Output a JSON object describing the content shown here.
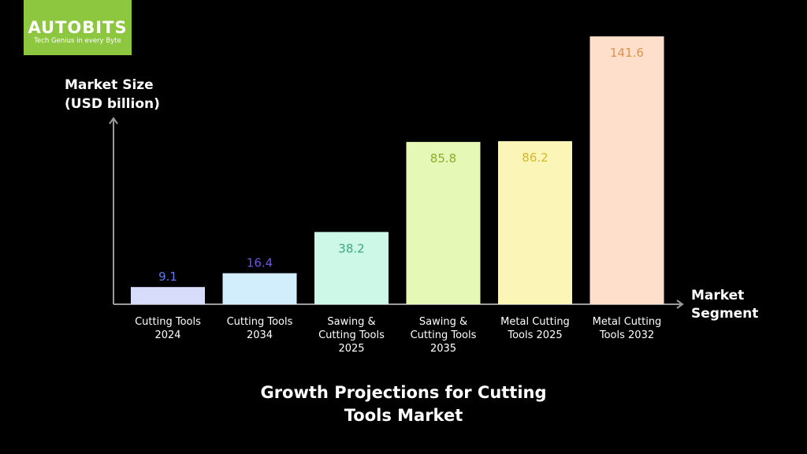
{
  "logo": {
    "name": "AUTOBITS",
    "tagline": "Tech Genius in every Byte",
    "color": "#8dc63f"
  },
  "chart_data": {
    "type": "bar",
    "title": "Growth Projections for Cutting Tools Market",
    "ylabel": [
      "Market Size",
      "(USD billion)"
    ],
    "xlabel": [
      "Market",
      "Segment"
    ],
    "ylim": [
      0,
      150
    ],
    "grid": false,
    "categories": [
      [
        "Cutting Tools",
        "2024"
      ],
      [
        "Cutting Tools",
        "2034"
      ],
      [
        "Sawing &",
        "Cutting Tools",
        "2025"
      ],
      [
        "Sawing &",
        "Cutting Tools",
        "2035"
      ],
      [
        "Metal Cutting",
        "Tools 2025"
      ],
      [
        "Metal Cutting",
        "Tools 2032"
      ]
    ],
    "values": [
      9.1,
      16.4,
      38.2,
      85.8,
      86.2,
      141.6
    ],
    "value_labels": [
      "9.1",
      "16.4",
      "38.2",
      "85.8",
      "86.2",
      "141.6"
    ],
    "bar_colors": [
      "#d7dcfb",
      "#d2eefc",
      "#cdf7e6",
      "#e6f8b5",
      "#fbf5b7",
      "#fddfcb"
    ],
    "label_colors": [
      "#5b7cf0",
      "#6a55e0",
      "#3fa585",
      "#8cac28",
      "#d6b92a",
      "#e0924a"
    ]
  }
}
